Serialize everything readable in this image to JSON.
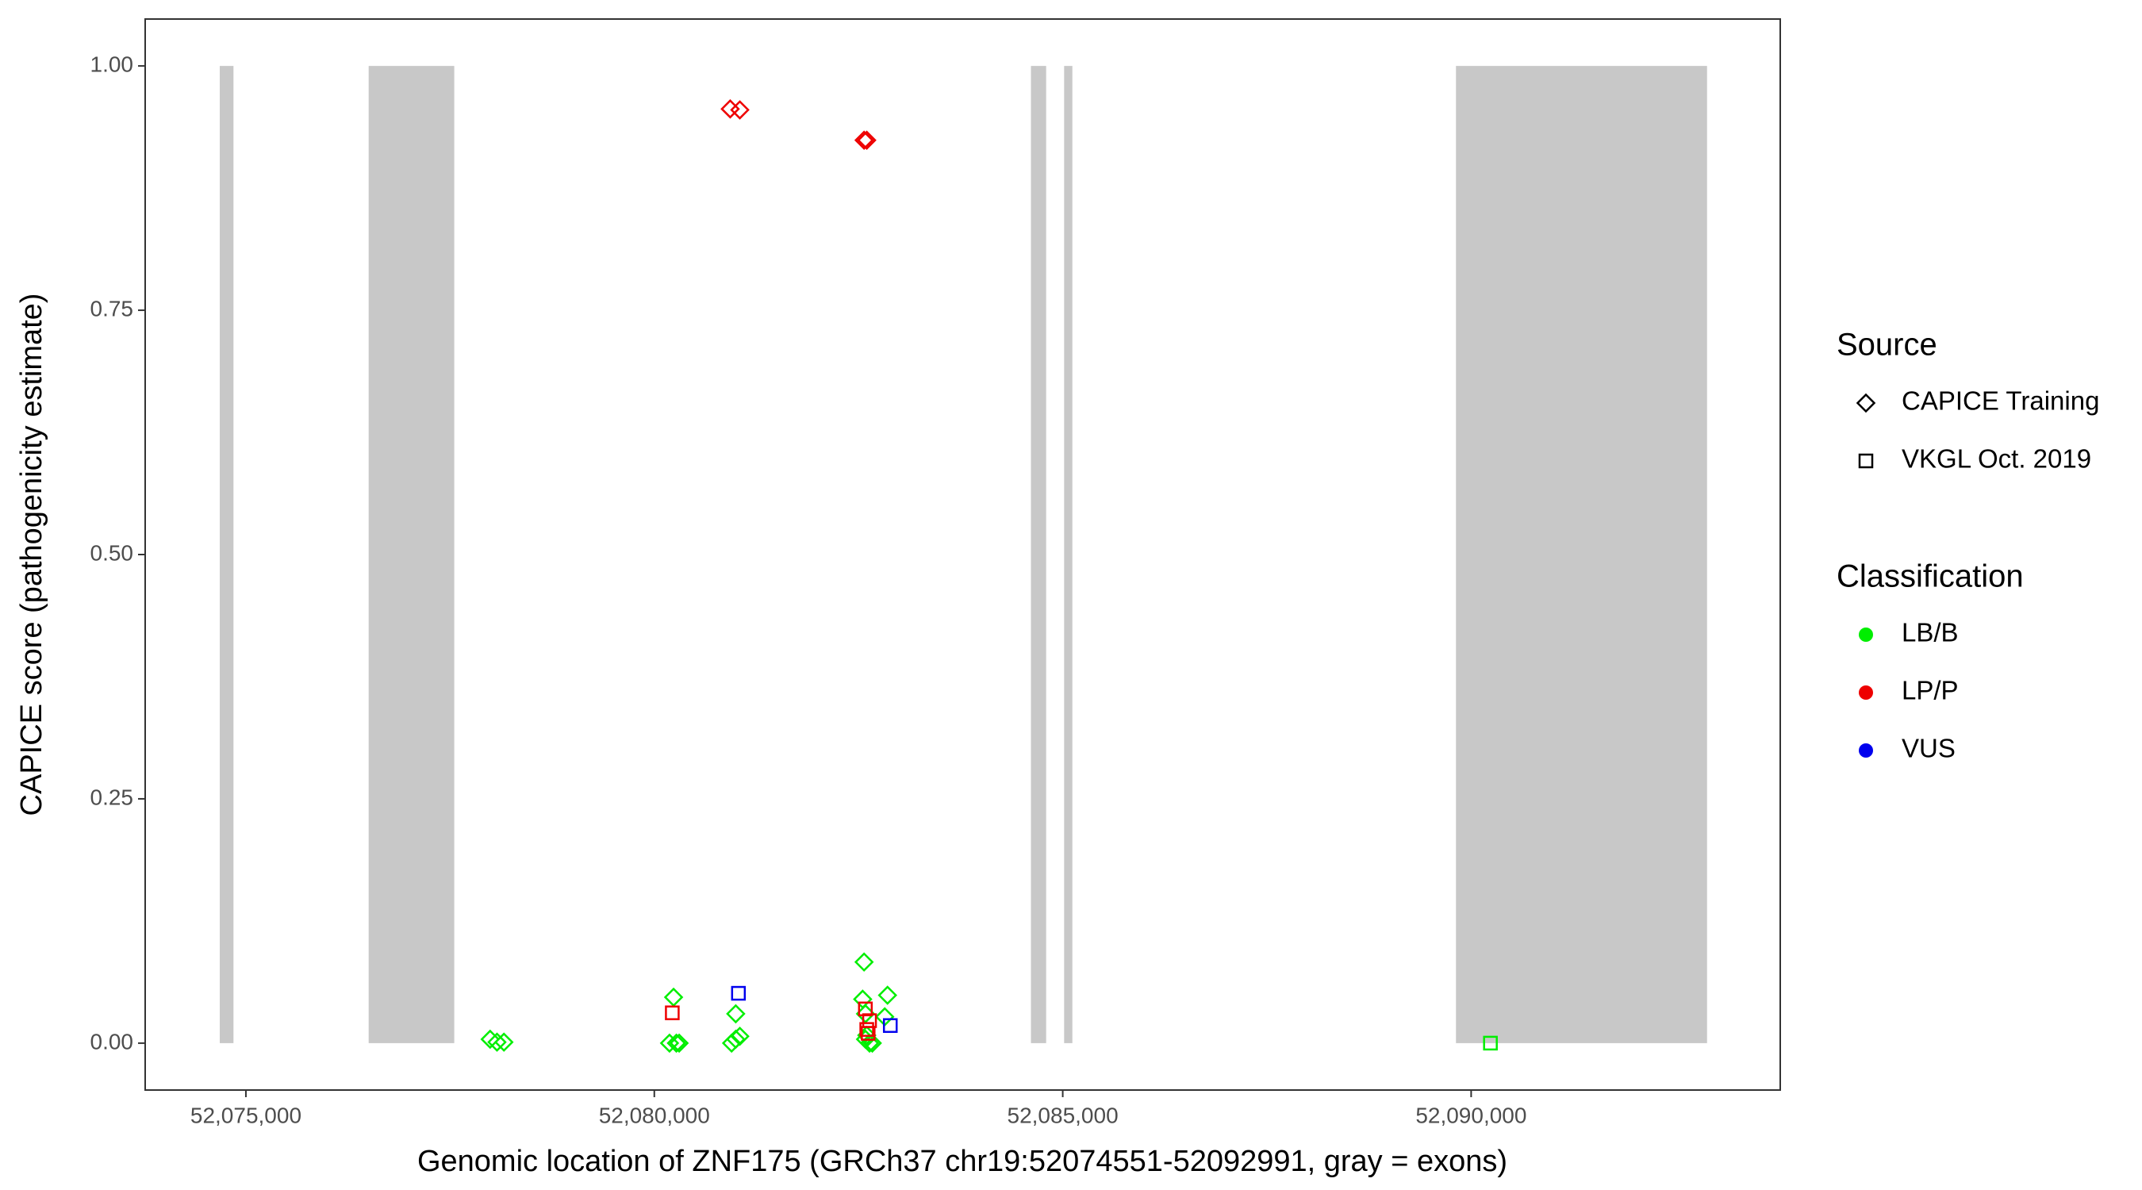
{
  "chart_data": {
    "type": "scatter",
    "xlabel": "Genomic location of ZNF175 (GRCh37 chr19:52074551-52092991, gray = exons)",
    "ylabel": "CAPICE score (pathogenicity estimate)",
    "xlim": [
      52073767,
      52093784
    ],
    "ylim": [
      -0.048,
      1.048
    ],
    "xticks": [
      {
        "value": 52075000,
        "label": "52,075,000"
      },
      {
        "value": 52080000,
        "label": "52,080,000"
      },
      {
        "value": 52085000,
        "label": "52,085,000"
      },
      {
        "value": 52090000,
        "label": "52,090,000"
      }
    ],
    "yticks": [
      {
        "value": 0,
        "label": "0.00"
      },
      {
        "value": 0.25,
        "label": "0.25"
      },
      {
        "value": 0.5,
        "label": "0.50"
      },
      {
        "value": 0.75,
        "label": "0.75"
      },
      {
        "value": 1,
        "label": "1.00"
      }
    ],
    "exon_color": "#c8c8c8",
    "exons": [
      [
        52074680,
        52074848
      ],
      [
        52076503,
        52077551
      ],
      [
        52084611,
        52084797
      ],
      [
        52085017,
        52085118
      ],
      [
        52089814,
        52092888
      ]
    ],
    "shape_legend": {
      "title": "Source",
      "entries": [
        {
          "label": "CAPICE Training",
          "shape": "diamond"
        },
        {
          "label": "VKGL Oct. 2019",
          "shape": "square"
        }
      ]
    },
    "color_legend": {
      "title": "Classification",
      "entries": [
        {
          "label": "LB/B",
          "color": "#00ee00"
        },
        {
          "label": "LP/P",
          "color": "#ee0000"
        },
        {
          "label": "VUS",
          "color": "#0000ee"
        }
      ]
    },
    "series": [
      {
        "source": "CAPICE Training",
        "classification": "LB/B",
        "x": [
          52077990,
          52078074,
          52078159,
          52080236,
          52080186,
          52080270,
          52080304,
          52080997,
          52080946,
          52080997,
          52081047,
          52082568,
          52082551,
          52082855,
          52082585,
          52082821,
          52082601,
          52082635,
          52082585,
          52082669
        ],
        "values": [
          0.004,
          0.001,
          0.001,
          0.047,
          0,
          0,
          0,
          0.03,
          0,
          0.004,
          0.007,
          0.083,
          0.045,
          0.049,
          0.03,
          0.027,
          0.008,
          0,
          0.004,
          0
        ]
      },
      {
        "source": "CAPICE Training",
        "classification": "LP/P",
        "x": [
          52080929,
          52081047,
          52082568,
          52082601
        ],
        "values": [
          0.956,
          0.955,
          0.924,
          0.924
        ]
      },
      {
        "source": "VKGL Oct. 2019",
        "classification": "LP/P",
        "x": [
          52080220,
          52082584,
          52082635,
          52082601,
          52082618
        ],
        "values": [
          0.031,
          0.035,
          0.023,
          0.014,
          0.01
        ]
      },
      {
        "source": "VKGL Oct. 2019",
        "classification": "VUS",
        "x": [
          52081030,
          52082889
        ],
        "values": [
          0.051,
          0.018
        ]
      },
      {
        "source": "VKGL Oct. 2019",
        "classification": "LB/B",
        "x": [
          52090236
        ],
        "values": [
          0
        ]
      }
    ]
  }
}
